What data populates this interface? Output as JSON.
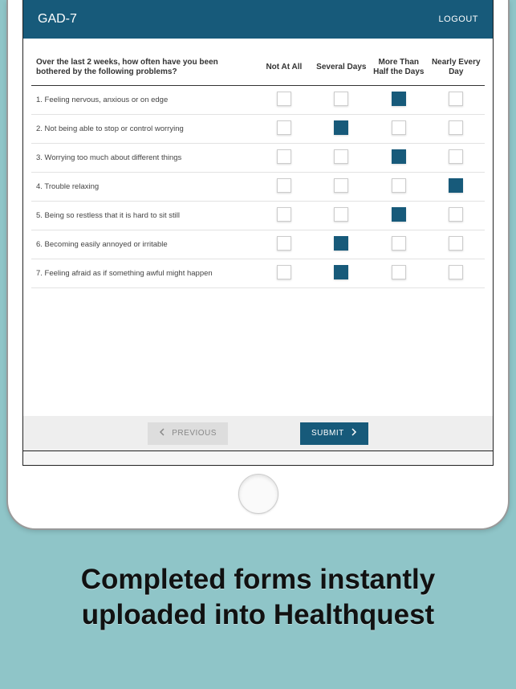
{
  "header": {
    "title": "GAD-7",
    "logout": "LOGOUT"
  },
  "survey": {
    "prompt": "Over the last 2 weeks, how often have you been bothered by the following problems?",
    "columns": [
      "Not At All",
      "Several Days",
      "More Than Half the Days",
      "Nearly Every Day"
    ],
    "rows": [
      {
        "label": "1. Feeling nervous, anxious or on edge",
        "selected": 2
      },
      {
        "label": "2. Not being able to stop or control worrying",
        "selected": 1
      },
      {
        "label": "3. Worrying too much about different things",
        "selected": 2
      },
      {
        "label": "4. Trouble relaxing",
        "selected": 3
      },
      {
        "label": "5. Being so restless that it is hard to sit still",
        "selected": 2
      },
      {
        "label": "6. Becoming easily annoyed or irritable",
        "selected": 1
      },
      {
        "label": "7. Feeling afraid as if something awful might happen",
        "selected": 1
      }
    ],
    "checkbox_colors": {
      "unselected_bg": "#ffffff",
      "unselected_border": "#cccccc",
      "selected_bg": "#175a7a"
    }
  },
  "footer": {
    "previous": "PREVIOUS",
    "submit": "SUBMIT"
  },
  "caption": "Completed forms instantly uploaded into Healthquest",
  "palette": {
    "page_bg": "#8fc5c8",
    "header_bg": "#175a7a",
    "header_text": "#ffffff",
    "footer_bg": "#eeeeee",
    "btn_prev_bg": "#dddddd",
    "btn_prev_text": "#888888",
    "btn_submit_bg": "#175a7a",
    "btn_submit_text": "#ffffff",
    "row_border": "#e2e2e2",
    "heading_border": "#333333"
  }
}
